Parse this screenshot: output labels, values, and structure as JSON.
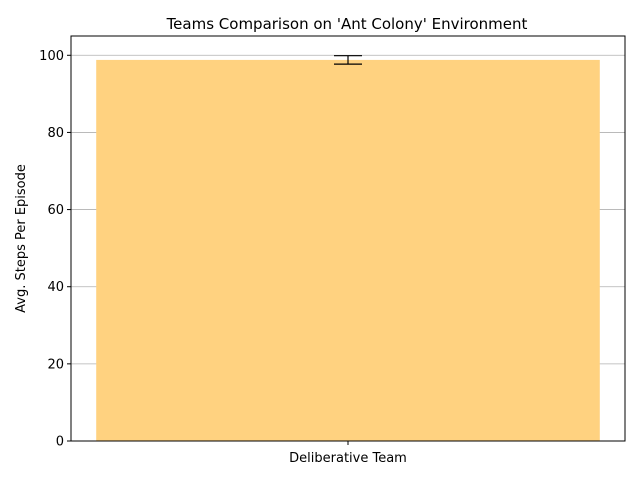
{
  "chart_data": {
    "type": "bar",
    "title": "Teams Comparison on 'Ant Colony' Environment",
    "xlabel": "",
    "ylabel": "Avg. Steps Per Episode",
    "categories": [
      "Deliberative Team"
    ],
    "values": [
      98.8
    ],
    "error": [
      1.1
    ],
    "ylim": [
      0,
      105
    ],
    "yticks": [
      0,
      20,
      40,
      60,
      80,
      100
    ],
    "grid": "y",
    "legend": "none",
    "colors": {
      "bar": "#ffd280",
      "error_bar": "#000000",
      "grid": "#b0b0b0",
      "axes": "#000000"
    }
  }
}
